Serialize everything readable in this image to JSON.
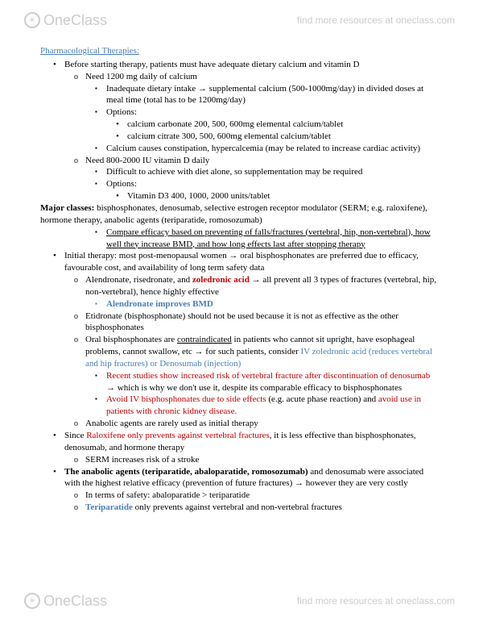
{
  "brand": {
    "logo": "OneClass",
    "tagline": "find more resources at oneclass.com"
  },
  "title": "Pharmacological Therapies:",
  "t": {
    "i1": "Before starting therapy, patients must have adequate dietary calcium and vitamin D",
    "i1a": "Need 1200 mg daily of calcium",
    "i1a1": "Inadequate dietary intake → supplemental calcium (500-1000mg/day) in divided doses at meal time (total has to be 1200mg/day)",
    "i1a2": "Options:",
    "i1a2a": "calcium carbonate 200, 500, 600mg elemental calcium/tablet",
    "i1a2b": "calcium citrate 300, 500, 600mg elemental calcium/tablet",
    "i1a3": "Calcium causes constipation, hypercalcemia (may be related to increase cardiac activity)",
    "i1b": "Need 800-2000 IU vitamin D daily",
    "i1b1": "Difficult to achieve with diet alone, so supplementation may be required",
    "i1b2": "Options:",
    "i1b2a": "Vitamin D3 400, 1000, 2000 units/tablet",
    "mc_lead": "Major classes:",
    "mc_rest": " bisphosphonates, denosumab, selective estrogen receptor modulator (SERM; e.g. raloxifene), hormone therapy, anabolic agents (teriparatide, romosozumab)",
    "mc_sub": "Compare efficacy based on preventing of falls/fractures (vertebral, hip, non-vertebral), how well they increase BMD, and how long effects last after stopping therapy",
    "i2": "Initial therapy: most post-menopausal women → oral bisphosphonates are preferred due to efficacy, favourable cost, and availability of long term safety data",
    "i2a_pre": "Alendronate, risedronate, and ",
    "i2a_red": "zoledronic acid",
    "i2a_post": " → all prevent all 3 types of fractures (vertebral, hip, non-vertebral), hence highly effective",
    "i2a1": "Alendronate improves BMD",
    "i2b": "Etidronate (bisphosphonate) should not be used because it is not as effective as the other bisphosphonates",
    "i2c_pre": "Oral bisphosphonates are ",
    "i2c_u": "contraindicated",
    "i2c_mid": " in patients who cannot sit upright, have esophageal problems, cannot swallow, etc → for such patients, consider ",
    "i2c_opt": "IV zoledronic acid (reduces vertebral and hip fractures) or Denosumab (injection)",
    "i2c1_red": "Recent studies show increased risk of vertebral fracture after discontinuation of denosumab",
    "i2c1_post": " → which is why we don't use it, despite its comparable efficacy to bisphosphonates",
    "i2c2_a": "Avoid IV bisphosphonates due to side effects",
    "i2c2_mid": " (e.g. acute phase reaction) and ",
    "i2c2_b": "avoid use in patients with chronic kidney disease.",
    "i2d": "Anabolic agents are rarely used as initial therapy",
    "i3_pre": "Since ",
    "i3_red": "Raloxifene only prevents against vertebral fractures",
    "i3_post": ", it is less effective than bisphosphonates, denosumab, and hormone therapy",
    "i3a": "SERM increases risk of a stroke",
    "i4_b": "The anabolic agents (teriparatide, abaloparatide, romosozumab)",
    "i4_mid": " and denosumab were associated with the highest relative efficacy (prevention of future fractures) → however they are very costly",
    "i4a": "In terms of safety: abaloparatide > teriparatide",
    "i4b_pre": "",
    "i4b_blue": "Teriparatide",
    "i4b_post": " only prevents against vertebral and non-vertebral fractures"
  },
  "colors": {
    "link": "#4a7fb5",
    "red": "#c00000",
    "text": "#000000",
    "muted": "#cccccc"
  }
}
